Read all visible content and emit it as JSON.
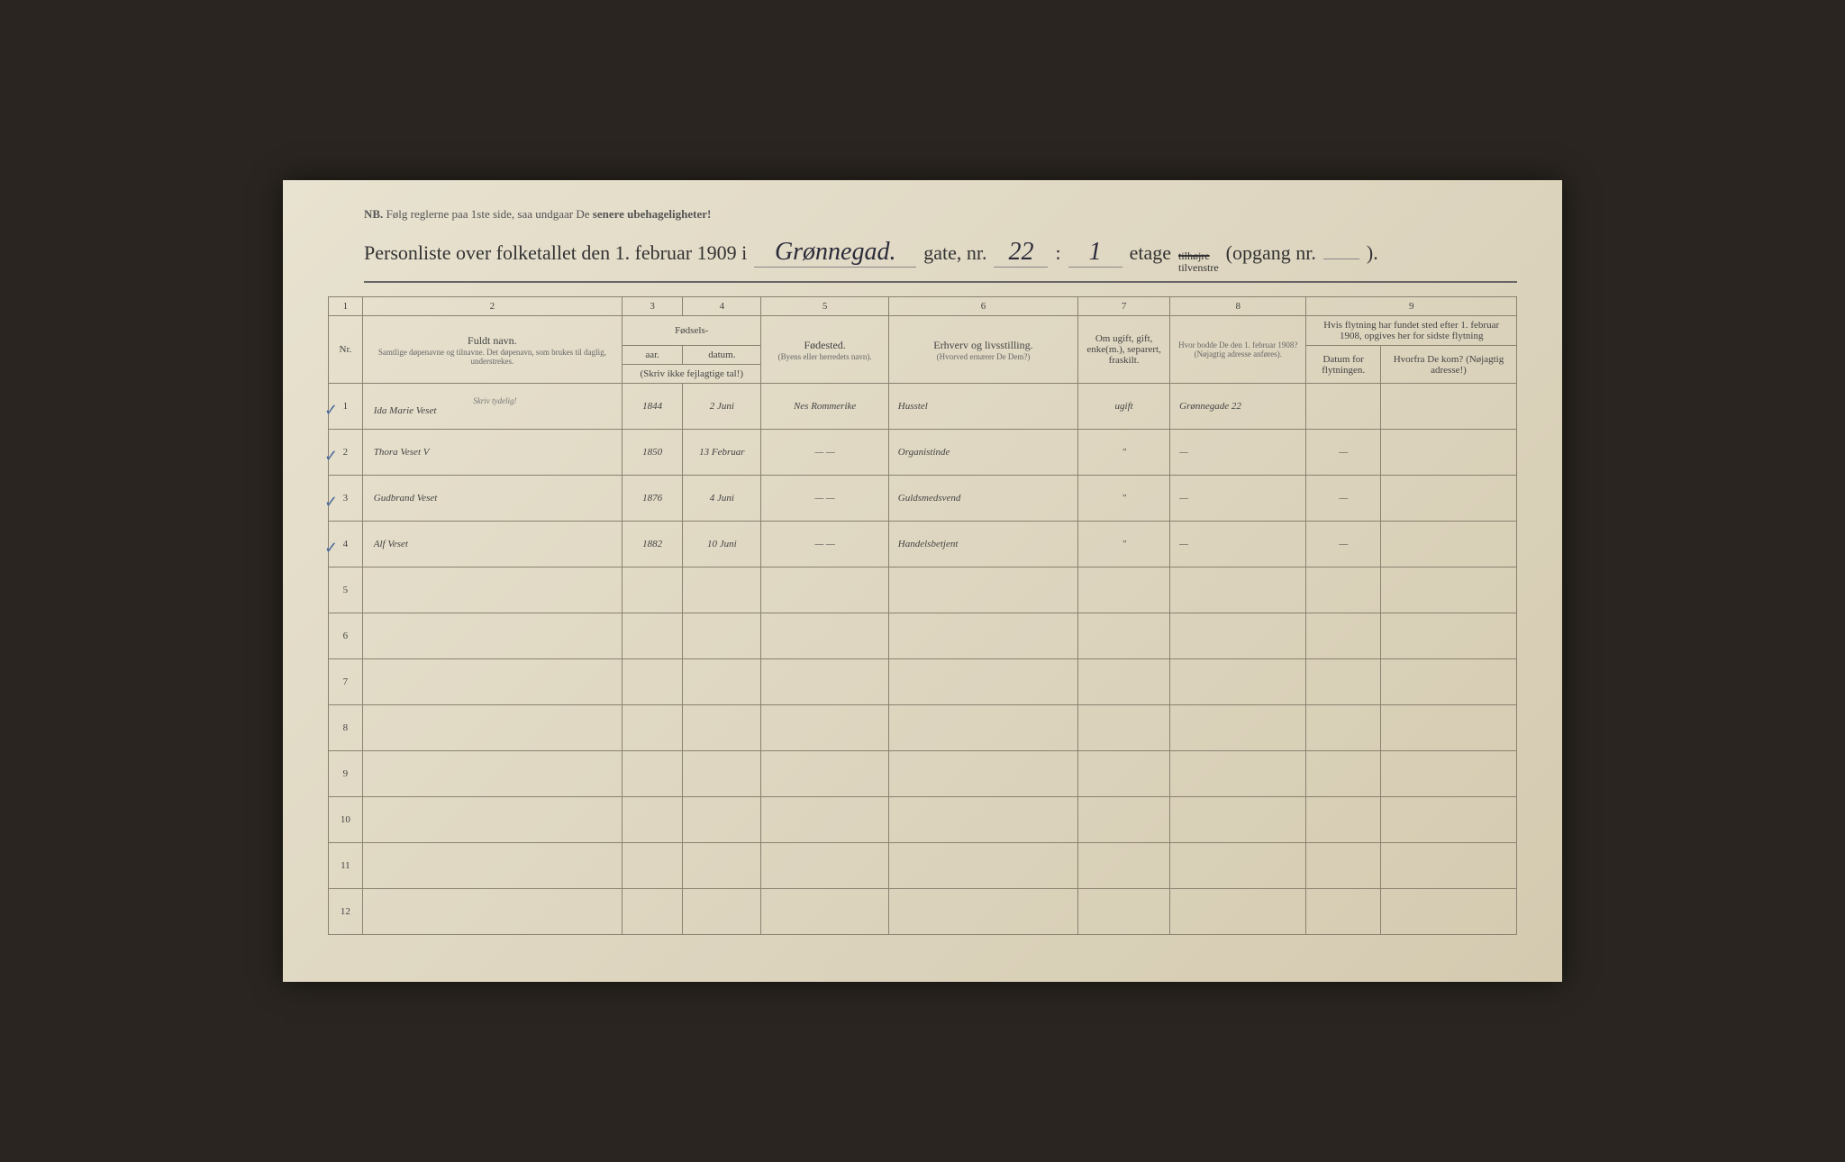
{
  "nb_prefix": "NB.",
  "nb_text": "Følg reglerne paa 1ste side, saa undgaar De",
  "nb_bold": "senere ubehageligheter!",
  "header": {
    "prefix": "Personliste over folketallet den 1. februar 1909 i",
    "street": "Grønnegad.",
    "gate_label": "gate, nr.",
    "nr": "22",
    "colon": ":",
    "etage_nr": "1",
    "etage_label": "etage",
    "tilhojre": "tilhøjre",
    "tilvenstre": "tilvenstre",
    "opgang": "(opgang nr.",
    "opgang_val": "",
    "closing": ")."
  },
  "columns": {
    "c1": "1",
    "c2": "2",
    "c3": "3",
    "c4": "4",
    "c5": "5",
    "c6": "6",
    "c7": "7",
    "c8": "8",
    "c9": "9",
    "nr": "Nr.",
    "name_main": "Fuldt navn.",
    "name_sub": "Samtlige døpenavne og tilnavne. Det døpenavn, som brukes til daglig, understrekes.",
    "fodsels": "Fødsels-",
    "aar": "aar.",
    "datum": "datum.",
    "skriv_ikke": "(Skriv ikke fejlagtige tal!)",
    "fodested": "Fødested.",
    "fodested_sub": "(Byens eller herredets navn).",
    "erhverv": "Erhverv og livsstilling.",
    "erhverv_sub": "(Hvorved ernærer De Dem?)",
    "ugift": "Om ugift, gift, enke(m.), separert, fraskilt.",
    "bodde": "Hvor bodde De den 1. februar 1908?",
    "bodde_sub": "(Nøjagtig adresse anføres).",
    "flytning": "Hvis flytning har fundet sted efter 1. februar 1908, opgives her for sidste flytning",
    "datum_flyt": "Datum for flytningen.",
    "hvorfra": "Hvorfra De kom? (Nøjagtig adresse!)",
    "skriv_tydelig": "Skriv tydelig!"
  },
  "rows": [
    {
      "nr": "1",
      "check": true,
      "name": "Ida Marie Veset",
      "aar": "1844",
      "datum": "2 Juni",
      "fodested": "Nes Rommerike",
      "erhverv": "Husstel",
      "ugift": "ugift",
      "bodde": "Grønnegade 22",
      "datum_flyt": "",
      "hvorfra": ""
    },
    {
      "nr": "2",
      "check": true,
      "name": "Thora Veset   V",
      "aar": "1850",
      "datum": "13 Februar",
      "fodested": "—    —",
      "erhverv": "Organistinde",
      "ugift": "\"",
      "bodde": "—",
      "datum_flyt": "—",
      "hvorfra": ""
    },
    {
      "nr": "3",
      "check": true,
      "name": "Gudbrand Veset",
      "aar": "1876",
      "datum": "4 Juni",
      "fodested": "—    —",
      "erhverv": "Guldsmedsvend",
      "ugift": "\"",
      "bodde": "—",
      "datum_flyt": "—",
      "hvorfra": ""
    },
    {
      "nr": "4",
      "check": true,
      "name": "Alf Veset",
      "aar": "1882",
      "datum": "10 Juni",
      "fodested": "—    —",
      "erhverv": "Handelsbetjent",
      "ugift": "\"",
      "bodde": "—",
      "datum_flyt": "—",
      "hvorfra": ""
    },
    {
      "nr": "5",
      "check": false,
      "name": "",
      "aar": "",
      "datum": "",
      "fodested": "",
      "erhverv": "",
      "ugift": "",
      "bodde": "",
      "datum_flyt": "",
      "hvorfra": ""
    },
    {
      "nr": "6",
      "check": false,
      "name": "",
      "aar": "",
      "datum": "",
      "fodested": "",
      "erhverv": "",
      "ugift": "",
      "bodde": "",
      "datum_flyt": "",
      "hvorfra": ""
    },
    {
      "nr": "7",
      "check": false,
      "name": "",
      "aar": "",
      "datum": "",
      "fodested": "",
      "erhverv": "",
      "ugift": "",
      "bodde": "",
      "datum_flyt": "",
      "hvorfra": ""
    },
    {
      "nr": "8",
      "check": false,
      "name": "",
      "aar": "",
      "datum": "",
      "fodested": "",
      "erhverv": "",
      "ugift": "",
      "bodde": "",
      "datum_flyt": "",
      "hvorfra": ""
    },
    {
      "nr": "9",
      "check": false,
      "name": "",
      "aar": "",
      "datum": "",
      "fodested": "",
      "erhverv": "",
      "ugift": "",
      "bodde": "",
      "datum_flyt": "",
      "hvorfra": ""
    },
    {
      "nr": "10",
      "check": false,
      "name": "",
      "aar": "",
      "datum": "",
      "fodested": "",
      "erhverv": "",
      "ugift": "",
      "bodde": "",
      "datum_flyt": "",
      "hvorfra": ""
    },
    {
      "nr": "11",
      "check": false,
      "name": "",
      "aar": "",
      "datum": "",
      "fodested": "",
      "erhverv": "",
      "ugift": "",
      "bodde": "",
      "datum_flyt": "",
      "hvorfra": ""
    },
    {
      "nr": "12",
      "check": false,
      "name": "",
      "aar": "",
      "datum": "",
      "fodested": "",
      "erhverv": "",
      "ugift": "",
      "bodde": "",
      "datum_flyt": "",
      "hvorfra": ""
    }
  ],
  "styling": {
    "paper_bg": "#e0d8c2",
    "border_color": "#8a8270",
    "text_color": "#444",
    "handwriting_color": "#2a2a3a",
    "check_color": "#4a6a9a",
    "col_widths": {
      "nr": 25,
      "name": 280,
      "aar": 55,
      "datum": 75,
      "fodested": 130,
      "erhverv": 200,
      "ugift": 90,
      "bodde": 140,
      "datum_flyt": 70,
      "hvorfra": 140
    }
  }
}
